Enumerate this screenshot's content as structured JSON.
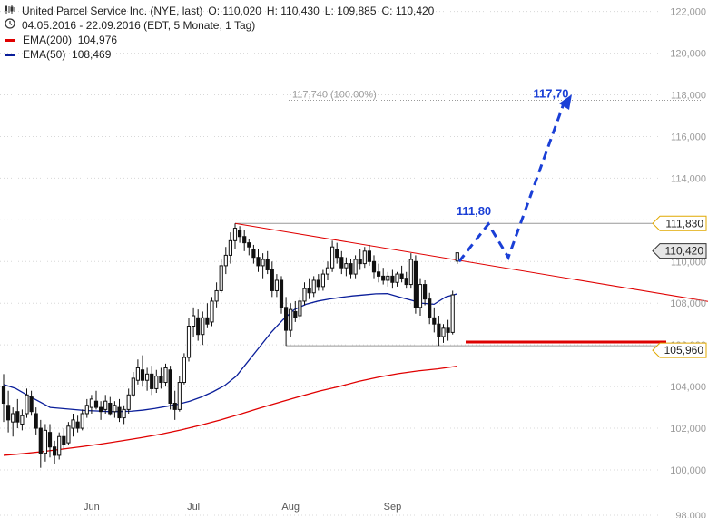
{
  "header": {
    "title": "United Parcel Service Inc. (NYE, last)",
    "ohlc": [
      {
        "label": "O:",
        "value": "110,020"
      },
      {
        "label": "H:",
        "value": "110,430"
      },
      {
        "label": "L:",
        "value": "109,885"
      },
      {
        "label": "C:",
        "value": "110,420"
      }
    ],
    "period": "04.05.2016 - 22.09.2016 (EDT, 5 Monate, 1 Tag)",
    "ema200": {
      "label": "EMA(200)",
      "value": "104,976",
      "color": "#e00000"
    },
    "ema50": {
      "label": "EMA(50)",
      "value": "108,469",
      "color": "#0a1e9a"
    },
    "icons": {
      "chart": "candlestick-chart-icon",
      "period": "clock-icon"
    }
  },
  "chart_data": {
    "type": "candlestick",
    "y_range": [
      98,
      122.5
    ],
    "y_ticks": [
      "122,000",
      "120,000",
      "118,000",
      "116,000",
      "114,000",
      "112,000",
      "110,000",
      "108,000",
      "106,000",
      "104,000",
      "102,000",
      "100,000",
      "98,000"
    ],
    "x_labels": [
      "Jun",
      "Jul",
      "Aug",
      "Sep"
    ],
    "colors": {
      "ema200": "#e00000",
      "ema50": "#0a1e9a",
      "trendline": "#e00000",
      "projection": "#1a3fd6",
      "support": "#dd0000",
      "grid": "#888888"
    },
    "candles": [
      {
        "date": "2016-05-04",
        "o": 104.0,
        "h": 104.6,
        "l": 102.3,
        "c": 103.2
      },
      {
        "date": "2016-05-05",
        "o": 103.1,
        "h": 103.8,
        "l": 101.8,
        "c": 102.4
      },
      {
        "date": "2016-05-06",
        "o": 102.3,
        "h": 103.0,
        "l": 101.6,
        "c": 102.7
      },
      {
        "date": "2016-05-09",
        "o": 102.8,
        "h": 103.4,
        "l": 102.0,
        "c": 102.3
      },
      {
        "date": "2016-05-10",
        "o": 102.2,
        "h": 102.9,
        "l": 101.9,
        "c": 102.6
      },
      {
        "date": "2016-05-11",
        "o": 102.7,
        "h": 103.9,
        "l": 102.5,
        "c": 103.6
      },
      {
        "date": "2016-05-12",
        "o": 103.5,
        "h": 103.8,
        "l": 102.6,
        "c": 102.8
      },
      {
        "date": "2016-05-13",
        "o": 102.7,
        "h": 103.0,
        "l": 101.7,
        "c": 102.0
      },
      {
        "date": "2016-05-16",
        "o": 102.0,
        "h": 102.4,
        "l": 100.1,
        "c": 100.8
      },
      {
        "date": "2016-05-17",
        "o": 100.8,
        "h": 102.2,
        "l": 100.4,
        "c": 101.9
      },
      {
        "date": "2016-05-18",
        "o": 101.8,
        "h": 102.2,
        "l": 100.6,
        "c": 101.1
      },
      {
        "date": "2016-05-19",
        "o": 101.1,
        "h": 101.4,
        "l": 100.3,
        "c": 100.7
      },
      {
        "date": "2016-05-20",
        "o": 100.7,
        "h": 101.8,
        "l": 100.5,
        "c": 101.6
      },
      {
        "date": "2016-05-23",
        "o": 101.6,
        "h": 102.0,
        "l": 101.0,
        "c": 101.2
      },
      {
        "date": "2016-05-24",
        "o": 101.3,
        "h": 102.3,
        "l": 101.2,
        "c": 102.1
      },
      {
        "date": "2016-05-25",
        "o": 102.0,
        "h": 102.7,
        "l": 101.6,
        "c": 102.4
      },
      {
        "date": "2016-05-26",
        "o": 102.3,
        "h": 102.6,
        "l": 101.8,
        "c": 102.0
      },
      {
        "date": "2016-05-27",
        "o": 102.0,
        "h": 102.9,
        "l": 101.9,
        "c": 102.7
      },
      {
        "date": "2016-05-31",
        "o": 102.7,
        "h": 103.4,
        "l": 102.5,
        "c": 103.1
      },
      {
        "date": "2016-06-01",
        "o": 103.0,
        "h": 103.6,
        "l": 102.7,
        "c": 103.4
      },
      {
        "date": "2016-06-02",
        "o": 103.3,
        "h": 103.8,
        "l": 102.9,
        "c": 103.0
      },
      {
        "date": "2016-06-03",
        "o": 103.0,
        "h": 103.3,
        "l": 102.4,
        "c": 102.8
      },
      {
        "date": "2016-06-06",
        "o": 102.9,
        "h": 103.6,
        "l": 102.7,
        "c": 103.3
      },
      {
        "date": "2016-06-07",
        "o": 103.2,
        "h": 103.5,
        "l": 102.6,
        "c": 102.7
      },
      {
        "date": "2016-06-08",
        "o": 102.8,
        "h": 103.3,
        "l": 102.5,
        "c": 103.1
      },
      {
        "date": "2016-06-09",
        "o": 103.0,
        "h": 103.4,
        "l": 102.3,
        "c": 102.5
      },
      {
        "date": "2016-06-10",
        "o": 102.5,
        "h": 103.1,
        "l": 102.2,
        "c": 102.9
      },
      {
        "date": "2016-06-13",
        "o": 102.9,
        "h": 103.9,
        "l": 102.7,
        "c": 103.6
      },
      {
        "date": "2016-06-14",
        "o": 103.6,
        "h": 104.7,
        "l": 103.5,
        "c": 104.4
      },
      {
        "date": "2016-06-15",
        "o": 104.3,
        "h": 105.3,
        "l": 104.1,
        "c": 104.9
      },
      {
        "date": "2016-06-16",
        "o": 104.8,
        "h": 105.5,
        "l": 104.0,
        "c": 104.3
      },
      {
        "date": "2016-06-17",
        "o": 104.3,
        "h": 104.9,
        "l": 103.8,
        "c": 104.6
      },
      {
        "date": "2016-06-20",
        "o": 104.6,
        "h": 105.0,
        "l": 103.6,
        "c": 103.9
      },
      {
        "date": "2016-06-21",
        "o": 103.9,
        "h": 104.8,
        "l": 103.7,
        "c": 104.5
      },
      {
        "date": "2016-06-22",
        "o": 104.5,
        "h": 104.9,
        "l": 103.9,
        "c": 104.2
      },
      {
        "date": "2016-06-23",
        "o": 104.2,
        "h": 105.1,
        "l": 104.0,
        "c": 104.9
      },
      {
        "date": "2016-06-24",
        "o": 104.8,
        "h": 105.0,
        "l": 102.9,
        "c": 103.2
      },
      {
        "date": "2016-06-27",
        "o": 103.2,
        "h": 103.8,
        "l": 102.4,
        "c": 102.9
      },
      {
        "date": "2016-06-28",
        "o": 102.9,
        "h": 104.5,
        "l": 102.8,
        "c": 104.2
      },
      {
        "date": "2016-06-29",
        "o": 104.2,
        "h": 105.6,
        "l": 104.1,
        "c": 105.4
      },
      {
        "date": "2016-06-30",
        "o": 105.4,
        "h": 107.3,
        "l": 105.2,
        "c": 106.9
      },
      {
        "date": "2016-07-01",
        "o": 106.9,
        "h": 107.8,
        "l": 106.4,
        "c": 107.4
      },
      {
        "date": "2016-07-05",
        "o": 107.3,
        "h": 107.7,
        "l": 106.2,
        "c": 106.5
      },
      {
        "date": "2016-07-06",
        "o": 106.5,
        "h": 107.6,
        "l": 106.0,
        "c": 107.3
      },
      {
        "date": "2016-07-07",
        "o": 107.3,
        "h": 108.0,
        "l": 106.8,
        "c": 107.0
      },
      {
        "date": "2016-07-08",
        "o": 107.1,
        "h": 108.3,
        "l": 106.9,
        "c": 108.1
      },
      {
        "date": "2016-07-11",
        "o": 108.1,
        "h": 109.0,
        "l": 107.8,
        "c": 108.6
      },
      {
        "date": "2016-07-12",
        "o": 108.6,
        "h": 110.1,
        "l": 108.5,
        "c": 109.8
      },
      {
        "date": "2016-07-13",
        "o": 109.8,
        "h": 110.7,
        "l": 109.4,
        "c": 110.3
      },
      {
        "date": "2016-07-14",
        "o": 110.3,
        "h": 111.4,
        "l": 109.9,
        "c": 111.0
      },
      {
        "date": "2016-07-15",
        "o": 111.0,
        "h": 111.83,
        "l": 110.6,
        "c": 111.6
      },
      {
        "date": "2016-07-18",
        "o": 111.5,
        "h": 111.7,
        "l": 110.9,
        "c": 111.2
      },
      {
        "date": "2016-07-19",
        "o": 111.2,
        "h": 111.5,
        "l": 110.5,
        "c": 110.9
      },
      {
        "date": "2016-07-20",
        "o": 110.9,
        "h": 111.1,
        "l": 110.3,
        "c": 110.7
      },
      {
        "date": "2016-07-21",
        "o": 110.6,
        "h": 110.8,
        "l": 109.9,
        "c": 110.2
      },
      {
        "date": "2016-07-22",
        "o": 110.2,
        "h": 110.6,
        "l": 109.5,
        "c": 109.8
      },
      {
        "date": "2016-07-25",
        "o": 109.8,
        "h": 110.4,
        "l": 109.2,
        "c": 110.1
      },
      {
        "date": "2016-07-26",
        "o": 110.1,
        "h": 110.5,
        "l": 109.4,
        "c": 109.6
      },
      {
        "date": "2016-07-27",
        "o": 109.6,
        "h": 110.0,
        "l": 108.3,
        "c": 108.6
      },
      {
        "date": "2016-07-28",
        "o": 108.6,
        "h": 109.4,
        "l": 108.3,
        "c": 109.1
      },
      {
        "date": "2016-07-29",
        "o": 109.1,
        "h": 109.3,
        "l": 107.5,
        "c": 107.8
      },
      {
        "date": "2016-08-01",
        "o": 107.8,
        "h": 108.3,
        "l": 105.96,
        "c": 106.7
      },
      {
        "date": "2016-08-02",
        "o": 106.7,
        "h": 108.0,
        "l": 106.4,
        "c": 107.7
      },
      {
        "date": "2016-08-03",
        "o": 107.6,
        "h": 108.1,
        "l": 107.1,
        "c": 107.3
      },
      {
        "date": "2016-08-04",
        "o": 107.4,
        "h": 108.3,
        "l": 107.2,
        "c": 108.1
      },
      {
        "date": "2016-08-05",
        "o": 108.1,
        "h": 109.0,
        "l": 107.9,
        "c": 108.7
      },
      {
        "date": "2016-08-08",
        "o": 108.7,
        "h": 109.2,
        "l": 108.2,
        "c": 108.5
      },
      {
        "date": "2016-08-09",
        "o": 108.5,
        "h": 109.3,
        "l": 108.3,
        "c": 109.1
      },
      {
        "date": "2016-08-10",
        "o": 109.1,
        "h": 109.4,
        "l": 108.6,
        "c": 108.8
      },
      {
        "date": "2016-08-11",
        "o": 108.8,
        "h": 109.6,
        "l": 108.6,
        "c": 109.4
      },
      {
        "date": "2016-08-12",
        "o": 109.4,
        "h": 110.0,
        "l": 109.1,
        "c": 109.7
      },
      {
        "date": "2016-08-15",
        "o": 109.7,
        "h": 111.0,
        "l": 109.5,
        "c": 110.7
      },
      {
        "date": "2016-08-16",
        "o": 110.6,
        "h": 110.9,
        "l": 109.9,
        "c": 110.2
      },
      {
        "date": "2016-08-17",
        "o": 110.2,
        "h": 110.5,
        "l": 109.4,
        "c": 109.7
      },
      {
        "date": "2016-08-18",
        "o": 109.7,
        "h": 110.2,
        "l": 109.3,
        "c": 109.9
      },
      {
        "date": "2016-08-19",
        "o": 109.9,
        "h": 110.1,
        "l": 109.2,
        "c": 109.4
      },
      {
        "date": "2016-08-22",
        "o": 109.4,
        "h": 110.3,
        "l": 109.2,
        "c": 110.1
      },
      {
        "date": "2016-08-23",
        "o": 110.1,
        "h": 110.6,
        "l": 109.6,
        "c": 109.9
      },
      {
        "date": "2016-08-24",
        "o": 109.9,
        "h": 110.7,
        "l": 109.7,
        "c": 110.5
      },
      {
        "date": "2016-08-25",
        "o": 110.5,
        "h": 110.8,
        "l": 109.8,
        "c": 110.0
      },
      {
        "date": "2016-08-26",
        "o": 110.0,
        "h": 110.3,
        "l": 109.2,
        "c": 109.5
      },
      {
        "date": "2016-08-29",
        "o": 109.5,
        "h": 109.9,
        "l": 109.0,
        "c": 109.3
      },
      {
        "date": "2016-08-30",
        "o": 109.3,
        "h": 109.7,
        "l": 108.9,
        "c": 109.1
      },
      {
        "date": "2016-08-31",
        "o": 109.1,
        "h": 109.5,
        "l": 108.8,
        "c": 109.3
      },
      {
        "date": "2016-09-01",
        "o": 109.3,
        "h": 109.6,
        "l": 108.7,
        "c": 109.0
      },
      {
        "date": "2016-09-02",
        "o": 109.0,
        "h": 109.5,
        "l": 108.8,
        "c": 109.4
      },
      {
        "date": "2016-09-06",
        "o": 109.4,
        "h": 109.8,
        "l": 109.0,
        "c": 109.2
      },
      {
        "date": "2016-09-07",
        "o": 109.2,
        "h": 109.5,
        "l": 108.7,
        "c": 108.9
      },
      {
        "date": "2016-09-08",
        "o": 108.9,
        "h": 110.4,
        "l": 108.7,
        "c": 110.1
      },
      {
        "date": "2016-09-09",
        "o": 110.0,
        "h": 110.3,
        "l": 107.5,
        "c": 107.8
      },
      {
        "date": "2016-09-12",
        "o": 107.8,
        "h": 109.2,
        "l": 107.4,
        "c": 108.9
      },
      {
        "date": "2016-09-13",
        "o": 108.9,
        "h": 109.1,
        "l": 107.9,
        "c": 108.2
      },
      {
        "date": "2016-09-14",
        "o": 108.2,
        "h": 108.5,
        "l": 107.0,
        "c": 107.3
      },
      {
        "date": "2016-09-15",
        "o": 107.3,
        "h": 107.8,
        "l": 106.6,
        "c": 107.0
      },
      {
        "date": "2016-09-16",
        "o": 107.0,
        "h": 107.4,
        "l": 105.96,
        "c": 106.4
      },
      {
        "date": "2016-09-19",
        "o": 106.4,
        "h": 107.0,
        "l": 106.1,
        "c": 106.8
      },
      {
        "date": "2016-09-20",
        "o": 106.8,
        "h": 107.2,
        "l": 106.2,
        "c": 106.6
      },
      {
        "date": "2016-09-21",
        "o": 106.6,
        "h": 108.6,
        "l": 106.5,
        "c": 108.4
      },
      {
        "date": "2016-09-22",
        "o": 110.02,
        "h": 110.43,
        "l": 109.885,
        "c": 110.42
      }
    ],
    "ema50": [
      104.1,
      103.92,
      103.6,
      103.3,
      103.0,
      102.95,
      102.9,
      102.85,
      102.83,
      102.8,
      102.8,
      102.82,
      102.87,
      102.95,
      103.05,
      103.15,
      103.3,
      103.5,
      103.75,
      104.05,
      104.5,
      105.2,
      105.9,
      106.6,
      107.2,
      107.7,
      107.95,
      108.1,
      108.2,
      108.28,
      108.35,
      108.4,
      108.45,
      108.46,
      108.3,
      108.15,
      108.0,
      107.95,
      108.3,
      108.45
    ],
    "ema200": [
      100.7,
      100.78,
      100.88,
      101.0,
      101.12,
      101.25,
      101.4,
      101.55,
      101.72,
      101.92,
      102.15,
      102.4,
      102.68,
      102.97,
      103.25,
      103.52,
      103.78,
      104.0,
      104.25,
      104.45,
      104.62,
      104.75,
      104.85,
      104.98
    ],
    "annotations": [
      {
        "label": "117,740 (100.00%)",
        "value": 117.74
      },
      {
        "label": "117,70",
        "value": 117.7
      },
      {
        "label": "111,80",
        "value": 111.8
      }
    ],
    "levels": [
      {
        "label": "111,830",
        "value": 111.83,
        "style": "resistance"
      },
      {
        "label": "110,420",
        "value": 110.42,
        "style": "last"
      },
      {
        "label": "105,960",
        "value": 105.96,
        "style": "support"
      }
    ],
    "trendline": {
      "from": 111.83,
      "to": 108.0
    },
    "projection": [
      110.0,
      111.8,
      110.2,
      117.7
    ]
  }
}
